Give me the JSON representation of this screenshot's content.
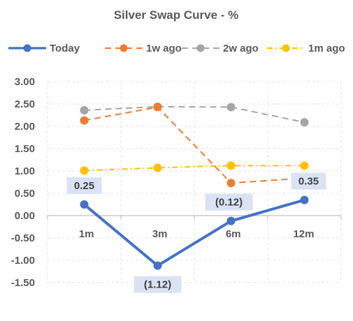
{
  "chart_data": {
    "type": "line",
    "title": "Silver Swap Curve - %",
    "categories": [
      "1m",
      "3m",
      "6m",
      "12m"
    ],
    "y_ticks": [
      "3.00",
      "2.50",
      "2.00",
      "1.50",
      "1.00",
      "0.50",
      "0.00",
      "-0.50",
      "-1.00",
      "-1.50"
    ],
    "ylim": [
      -1.5,
      3.0
    ],
    "grid": "horizontal and vertical dashed",
    "legend_position": "top",
    "series": [
      {
        "name": "Today",
        "values": [
          0.25,
          -1.12,
          -0.12,
          0.35
        ],
        "data_labels": [
          "0.25",
          "(1.12)",
          "(0.12)",
          "0.35"
        ],
        "color": "#4472C4",
        "style": "solid"
      },
      {
        "name": "1w ago",
        "values": [
          2.13,
          2.43,
          0.73,
          0.84
        ],
        "color": "#ED7D31",
        "style": "dashed"
      },
      {
        "name": "2w ago",
        "values": [
          2.36,
          2.44,
          2.43,
          2.09
        ],
        "color": "#A5A5A5",
        "style": "dashed"
      },
      {
        "name": "1m ago",
        "values": [
          1.01,
          1.07,
          1.12,
          1.12
        ],
        "color": "#FFC000",
        "style": "dash-dot"
      }
    ]
  }
}
